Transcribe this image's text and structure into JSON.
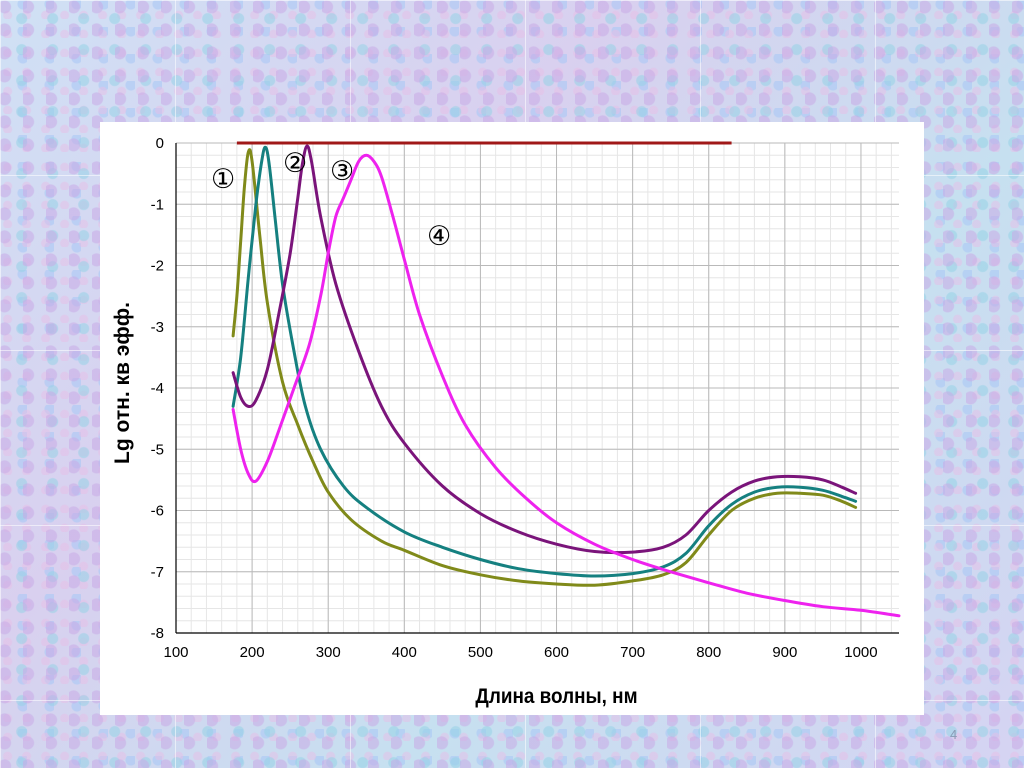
{
  "slide": {
    "page_number": "4"
  },
  "chart_data": {
    "type": "line",
    "title": "",
    "xlabel": "Длина волны, нм",
    "ylabel": "Lg  отн. кв эфф.",
    "xlim": [
      100,
      1050
    ],
    "ylim": [
      -8,
      0
    ],
    "xticks": [
      100,
      200,
      300,
      400,
      500,
      600,
      700,
      800,
      900,
      1000
    ],
    "yticks": [
      0,
      -1,
      -2,
      -3,
      -4,
      -5,
      -6,
      -7,
      -8
    ],
    "grid": {
      "major": true,
      "minor": true
    },
    "reference_line": {
      "color": "#a01818",
      "x": [
        180,
        830
      ],
      "y": 0
    },
    "series": [
      {
        "marker": "①",
        "color": "#808a1a",
        "points": [
          [
            175,
            -3.15
          ],
          [
            180,
            -2.5
          ],
          [
            185,
            -1.6
          ],
          [
            190,
            -0.7
          ],
          [
            195,
            -0.15
          ],
          [
            200,
            -0.3
          ],
          [
            210,
            -1.5
          ],
          [
            220,
            -2.6
          ],
          [
            240,
            -3.9
          ],
          [
            260,
            -4.6
          ],
          [
            280,
            -5.2
          ],
          [
            300,
            -5.7
          ],
          [
            330,
            -6.15
          ],
          [
            370,
            -6.5
          ],
          [
            400,
            -6.65
          ],
          [
            450,
            -6.9
          ],
          [
            500,
            -7.05
          ],
          [
            550,
            -7.15
          ],
          [
            600,
            -7.2
          ],
          [
            650,
            -7.22
          ],
          [
            700,
            -7.15
          ],
          [
            740,
            -7.05
          ],
          [
            770,
            -6.85
          ],
          [
            800,
            -6.4
          ],
          [
            830,
            -6.0
          ],
          [
            860,
            -5.8
          ],
          [
            890,
            -5.72
          ],
          [
            920,
            -5.72
          ],
          [
            950,
            -5.75
          ],
          [
            975,
            -5.85
          ],
          [
            993,
            -5.95
          ]
        ]
      },
      {
        "marker": "②",
        "color": "#158080",
        "points": [
          [
            175,
            -4.3
          ],
          [
            185,
            -3.5
          ],
          [
            195,
            -2.2
          ],
          [
            205,
            -1.0
          ],
          [
            212,
            -0.35
          ],
          [
            217,
            -0.07
          ],
          [
            222,
            -0.3
          ],
          [
            230,
            -1.2
          ],
          [
            240,
            -2.3
          ],
          [
            255,
            -3.4
          ],
          [
            270,
            -4.3
          ],
          [
            290,
            -5.0
          ],
          [
            320,
            -5.6
          ],
          [
            350,
            -5.95
          ],
          [
            400,
            -6.35
          ],
          [
            450,
            -6.6
          ],
          [
            500,
            -6.8
          ],
          [
            550,
            -6.95
          ],
          [
            600,
            -7.03
          ],
          [
            650,
            -7.07
          ],
          [
            700,
            -7.03
          ],
          [
            740,
            -6.92
          ],
          [
            770,
            -6.7
          ],
          [
            800,
            -6.25
          ],
          [
            830,
            -5.9
          ],
          [
            860,
            -5.7
          ],
          [
            890,
            -5.62
          ],
          [
            920,
            -5.62
          ],
          [
            950,
            -5.67
          ],
          [
            975,
            -5.77
          ],
          [
            993,
            -5.85
          ]
        ]
      },
      {
        "marker": "③",
        "color": "#7a147a",
        "points": [
          [
            175,
            -3.75
          ],
          [
            185,
            -4.15
          ],
          [
            195,
            -4.3
          ],
          [
            205,
            -4.2
          ],
          [
            220,
            -3.7
          ],
          [
            235,
            -2.8
          ],
          [
            250,
            -1.8
          ],
          [
            260,
            -0.9
          ],
          [
            266,
            -0.35
          ],
          [
            272,
            -0.05
          ],
          [
            278,
            -0.3
          ],
          [
            290,
            -1.2
          ],
          [
            310,
            -2.3
          ],
          [
            340,
            -3.4
          ],
          [
            370,
            -4.3
          ],
          [
            400,
            -4.9
          ],
          [
            450,
            -5.6
          ],
          [
            500,
            -6.05
          ],
          [
            550,
            -6.35
          ],
          [
            600,
            -6.55
          ],
          [
            650,
            -6.67
          ],
          [
            700,
            -6.68
          ],
          [
            740,
            -6.6
          ],
          [
            770,
            -6.4
          ],
          [
            800,
            -6.0
          ],
          [
            830,
            -5.7
          ],
          [
            860,
            -5.52
          ],
          [
            890,
            -5.45
          ],
          [
            920,
            -5.45
          ],
          [
            950,
            -5.5
          ],
          [
            975,
            -5.62
          ],
          [
            993,
            -5.72
          ]
        ]
      },
      {
        "marker": "④",
        "color": "#ee22ee",
        "points": [
          [
            175,
            -4.35
          ],
          [
            185,
            -5.0
          ],
          [
            195,
            -5.4
          ],
          [
            205,
            -5.52
          ],
          [
            220,
            -5.2
          ],
          [
            235,
            -4.7
          ],
          [
            255,
            -4.0
          ],
          [
            275,
            -3.3
          ],
          [
            290,
            -2.5
          ],
          [
            300,
            -1.8
          ],
          [
            310,
            -1.2
          ],
          [
            320,
            -0.9
          ],
          [
            330,
            -0.6
          ],
          [
            340,
            -0.3
          ],
          [
            350,
            -0.2
          ],
          [
            360,
            -0.3
          ],
          [
            370,
            -0.55
          ],
          [
            385,
            -1.2
          ],
          [
            400,
            -1.9
          ],
          [
            420,
            -2.8
          ],
          [
            450,
            -3.8
          ],
          [
            480,
            -4.6
          ],
          [
            520,
            -5.3
          ],
          [
            560,
            -5.8
          ],
          [
            600,
            -6.2
          ],
          [
            650,
            -6.55
          ],
          [
            700,
            -6.8
          ],
          [
            750,
            -7.0
          ],
          [
            800,
            -7.18
          ],
          [
            850,
            -7.35
          ],
          [
            900,
            -7.47
          ],
          [
            950,
            -7.57
          ],
          [
            1000,
            -7.63
          ],
          [
            1050,
            -7.72
          ]
        ]
      }
    ]
  }
}
